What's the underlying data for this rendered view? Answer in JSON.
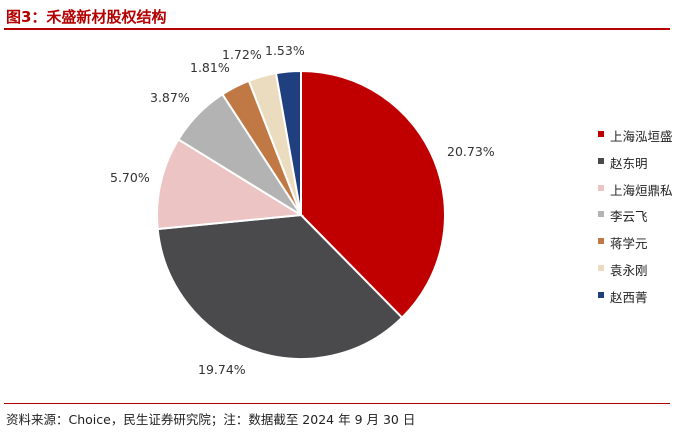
{
  "title": "图3：禾盛新材股权结构",
  "source": "资料来源：Choice，民生证券研究院；注：数据截至 2024 年 9 月 30 日",
  "chart_data": {
    "type": "pie",
    "title": "图3：禾盛新材股权结构",
    "slices": [
      {
        "label": "上海泓垣盛",
        "value": 20.73,
        "display": "20.73%",
        "color": "#c00000"
      },
      {
        "label": "赵东明",
        "value": 19.74,
        "display": "19.74%",
        "color": "#4a4a4d"
      },
      {
        "label": "上海烜鼎私",
        "value": 5.7,
        "display": "5.70%",
        "color": "#ecc4c4"
      },
      {
        "label": "李云飞",
        "value": 3.87,
        "display": "3.87%",
        "color": "#b3b3b3"
      },
      {
        "label": "蒋学元",
        "value": 1.81,
        "display": "1.81%",
        "color": "#c07845"
      },
      {
        "label": "袁永刚",
        "value": 1.72,
        "display": "1.72%",
        "color": "#ecdcbf"
      },
      {
        "label": "赵西菁",
        "value": 1.53,
        "display": "1.53%",
        "color": "#1f3f7f"
      }
    ],
    "legend_position": "right"
  }
}
